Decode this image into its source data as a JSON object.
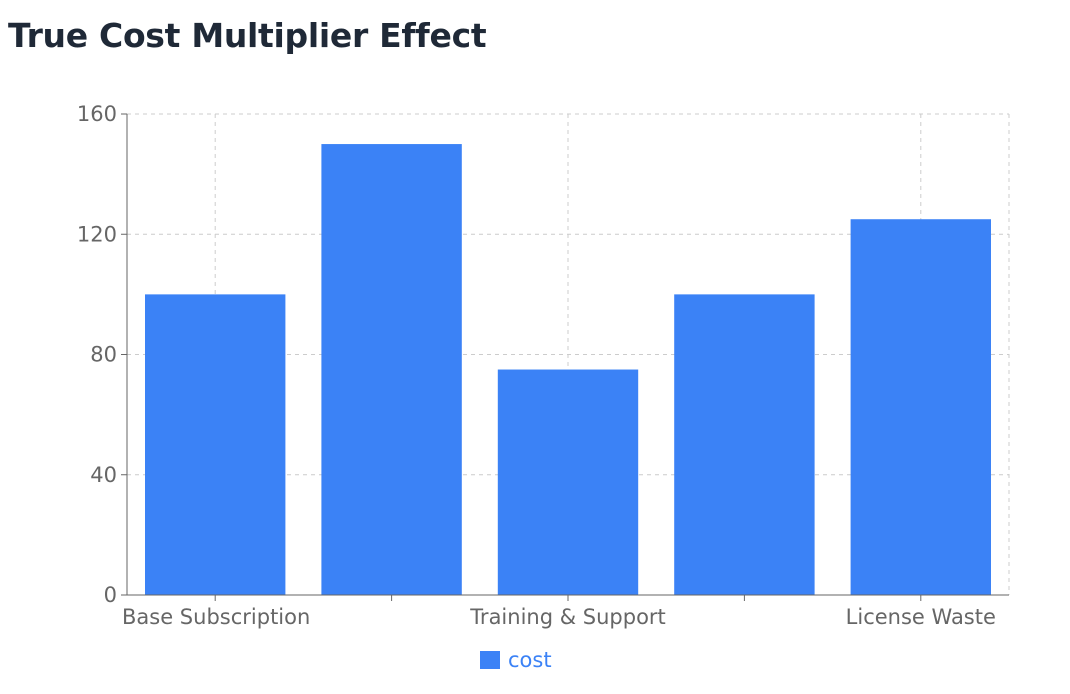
{
  "chart_data": {
    "type": "bar",
    "title": "True Cost Multiplier Effect",
    "categories": [
      "Base Subscription",
      "",
      "Training & Support",
      "",
      "License Waste"
    ],
    "series": [
      {
        "name": "cost",
        "values": [
          100,
          150,
          75,
          100,
          125
        ],
        "color": "#3b82f6"
      }
    ],
    "xlabel": "",
    "ylabel": "",
    "ylim": [
      0,
      160
    ],
    "yticks": [
      0,
      40,
      80,
      120,
      160
    ],
    "xtick_labels_shown": [
      "Base Subscription",
      "Training & Support",
      "License Waste"
    ],
    "grid": true,
    "legend": "bottom-center"
  },
  "legend": {
    "label": "cost",
    "color": "#3b82f6"
  }
}
